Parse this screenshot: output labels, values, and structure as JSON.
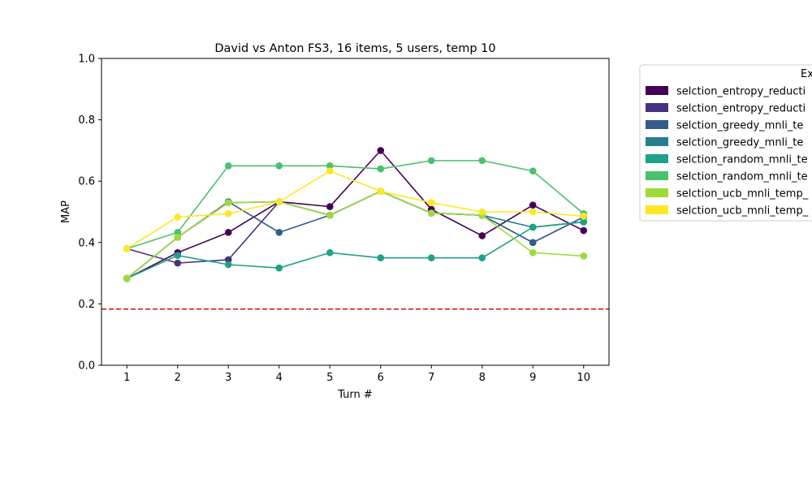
{
  "chart_data": {
    "type": "line",
    "title": "David vs Anton FS3, 16 items, 5 users, temp 10",
    "xlabel": "Turn #",
    "ylabel": "MAP",
    "x": [
      1,
      2,
      3,
      4,
      5,
      6,
      7,
      8,
      9,
      10
    ],
    "xlim": [
      0.5,
      10.5
    ],
    "ylim": [
      0.0,
      1.0
    ],
    "yticks": [
      "0.0",
      "0.2",
      "0.4",
      "0.6",
      "0.8",
      "1.0"
    ],
    "xticks": [
      "1",
      "2",
      "3",
      "4",
      "5",
      "6",
      "7",
      "8",
      "9",
      "10"
    ],
    "grid": false,
    "legend_title": "Ex",
    "legend_position": "outside-right",
    "baseline": {
      "value": 0.183,
      "color": "#e41a1c",
      "style": "dashed"
    },
    "series": [
      {
        "name": "selction_entropy_reducti",
        "color": "#440154",
        "values": [
          0.283,
          0.367,
          0.433,
          0.533,
          0.517,
          0.7,
          0.508,
          0.422,
          0.522,
          0.439
        ]
      },
      {
        "name": "selction_entropy_reducti",
        "color": "#46327e",
        "values": [
          0.38,
          0.333,
          0.344,
          0.533,
          0.489,
          0.567,
          0.496,
          0.489,
          0.4,
          0.483
        ]
      },
      {
        "name": "selction_greedy_mnli_te",
        "color": "#365c8d",
        "values": [
          0.283,
          0.417,
          0.533,
          0.433,
          0.489,
          0.567,
          0.496,
          0.489,
          0.4,
          0.483
        ]
      },
      {
        "name": "selction_greedy_mnli_te",
        "color": "#277f8e",
        "values": [
          0.283,
          0.417,
          0.53,
          0.533,
          0.489,
          0.567,
          0.496,
          0.489,
          0.45,
          0.467
        ]
      },
      {
        "name": "selction_random_mnli_te",
        "color": "#1fa187",
        "values": [
          0.283,
          0.358,
          0.328,
          0.317,
          0.367,
          0.35,
          0.35,
          0.35,
          0.45,
          0.467
        ]
      },
      {
        "name": "selction_random_mnli_te",
        "color": "#4ac16d",
        "values": [
          0.38,
          0.433,
          0.65,
          0.65,
          0.65,
          0.64,
          0.667,
          0.667,
          0.633,
          0.494
        ]
      },
      {
        "name": "selction_ucb_mnli_temp_",
        "color": "#a0da39",
        "values": [
          0.283,
          0.417,
          0.53,
          0.533,
          0.489,
          0.567,
          0.496,
          0.489,
          0.367,
          0.356
        ]
      },
      {
        "name": "selction_ucb_mnli_temp_",
        "color": "#fde725",
        "values": [
          0.38,
          0.483,
          0.494,
          0.533,
          0.633,
          0.567,
          0.53,
          0.5,
          0.5,
          0.486
        ]
      }
    ]
  }
}
